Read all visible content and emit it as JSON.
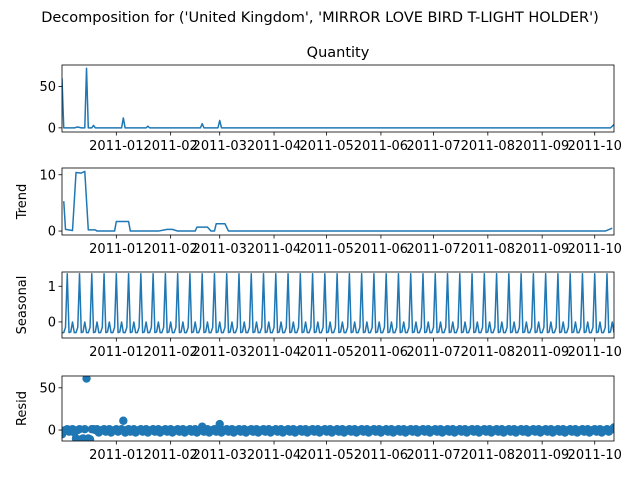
{
  "suptitle": "Decomposition for ('United Kingdom', 'MIRROR LOVE BIRD T-LIGHT HOLDER')",
  "x_tick_labels": [
    "2011-01",
    "2011-02",
    "2011-03",
    "2011-04",
    "2011-05",
    "2011-06",
    "2011-07",
    "2011-08",
    "2011-09",
    "2011-10"
  ],
  "chart_data": [
    {
      "type": "line",
      "title": "Quantity",
      "ylabel": "",
      "x_range": [
        "2010-12-01",
        "2011-10-12"
      ],
      "ylim": [
        -5,
        76
      ],
      "yticks": [
        0,
        50
      ],
      "color": "#1f77b4",
      "series": [
        {
          "points": [
            [
              "2010-12-01",
              60
            ],
            [
              "2010-12-02",
              0
            ],
            [
              "2010-12-08",
              0
            ],
            [
              "2010-12-10",
              1
            ],
            [
              "2010-12-12",
              0
            ],
            [
              "2010-12-14",
              0
            ],
            [
              "2010-12-15",
              72
            ],
            [
              "2010-12-16",
              0
            ],
            [
              "2010-12-18",
              0
            ],
            [
              "2010-12-19",
              3
            ],
            [
              "2010-12-20",
              0
            ],
            [
              "2011-01-04",
              0
            ],
            [
              "2011-01-05",
              12
            ],
            [
              "2011-01-06",
              0
            ],
            [
              "2011-01-18",
              0
            ],
            [
              "2011-01-19",
              2
            ],
            [
              "2011-01-20",
              0
            ],
            [
              "2011-02-18",
              0
            ],
            [
              "2011-02-19",
              5
            ],
            [
              "2011-02-20",
              0
            ],
            [
              "2011-02-28",
              0
            ],
            [
              "2011-03-01",
              9
            ],
            [
              "2011-03-02",
              0
            ],
            [
              "2011-10-10",
              0
            ],
            [
              "2011-10-12",
              4
            ]
          ]
        }
      ]
    },
    {
      "type": "line",
      "title": "",
      "ylabel": "Trend",
      "x_range": [
        "2010-12-01",
        "2011-10-12"
      ],
      "ylim": [
        -0.7,
        11.2
      ],
      "yticks": [
        0,
        10
      ],
      "color": "#1f77b4",
      "series": [
        {
          "points": [
            [
              "2010-12-02",
              5.3
            ],
            [
              "2010-12-03",
              0.3
            ],
            [
              "2010-12-07",
              0.1
            ],
            [
              "2010-12-09",
              10.4
            ],
            [
              "2010-12-12",
              10.3
            ],
            [
              "2010-12-14",
              10.6
            ],
            [
              "2010-12-16",
              0.2
            ],
            [
              "2010-12-20",
              0.2
            ],
            [
              "2010-12-21",
              0
            ],
            [
              "2010-12-31",
              0
            ],
            [
              "2011-01-01",
              1.7
            ],
            [
              "2011-01-08",
              1.7
            ],
            [
              "2011-01-09",
              0
            ],
            [
              "2011-01-25",
              0
            ],
            [
              "2011-01-30",
              0.3
            ],
            [
              "2011-02-02",
              0.3
            ],
            [
              "2011-02-05",
              0
            ],
            [
              "2011-02-15",
              0
            ],
            [
              "2011-02-16",
              0.7
            ],
            [
              "2011-02-22",
              0.7
            ],
            [
              "2011-02-24",
              0
            ],
            [
              "2011-02-26",
              0
            ],
            [
              "2011-02-27",
              1.3
            ],
            [
              "2011-03-04",
              1.3
            ],
            [
              "2011-03-06",
              0
            ],
            [
              "2011-10-07",
              0
            ],
            [
              "2011-10-11",
              0.5
            ]
          ]
        }
      ]
    },
    {
      "type": "line",
      "title": "",
      "ylabel": "Seasonal",
      "x_range": [
        "2010-12-01",
        "2011-10-12"
      ],
      "ylim": [
        -0.45,
        1.4
      ],
      "yticks": [
        0,
        1
      ],
      "color": "#1f77b4",
      "period_days": 7,
      "cycle_values": [
        -0.3,
        -0.3,
        -0.15,
        1.35,
        -0.3,
        -0.28,
        0.0
      ]
    },
    {
      "type": "scatter",
      "title": "",
      "ylabel": "Resid",
      "x_range": [
        "2010-12-01",
        "2011-10-12"
      ],
      "ylim": [
        -13,
        64
      ],
      "yticks": [
        0,
        50
      ],
      "color": "#1f77b4",
      "baseline_jitter": [
        -3,
        -1,
        0,
        1,
        -2,
        0,
        1
      ],
      "outliers": [
        [
          "2010-12-01",
          -5
        ],
        [
          "2010-12-09",
          -10
        ],
        [
          "2010-12-12",
          -11
        ],
        [
          "2010-12-13",
          -10
        ],
        [
          "2010-12-15",
          61
        ],
        [
          "2010-12-16",
          -10
        ],
        [
          "2010-12-17",
          -11
        ],
        [
          "2010-12-19",
          1
        ],
        [
          "2011-01-05",
          11
        ],
        [
          "2011-01-06",
          -3
        ],
        [
          "2011-02-19",
          4
        ],
        [
          "2011-03-01",
          7
        ],
        [
          "2011-10-12",
          3
        ]
      ]
    }
  ]
}
